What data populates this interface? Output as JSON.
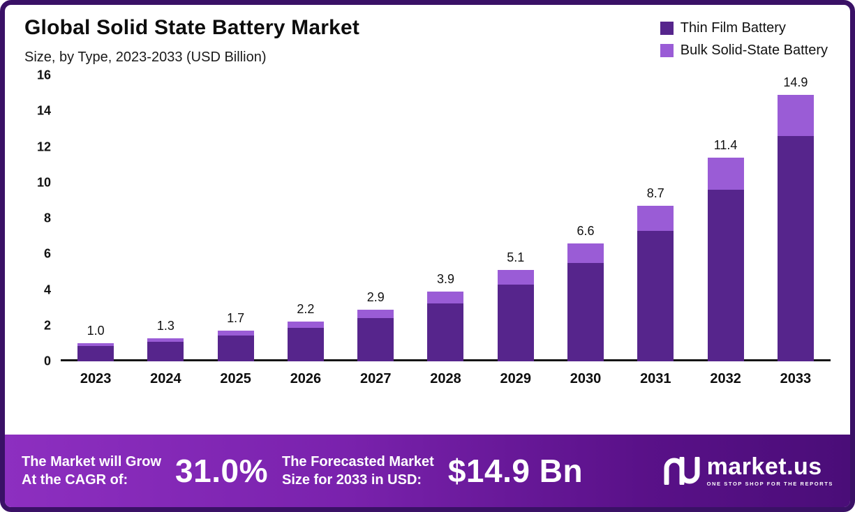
{
  "header": {
    "title": "Global Solid State Battery Market",
    "subtitle": "Size, by Type, 2023-2033 (USD Billion)"
  },
  "legend": [
    {
      "label": "Thin Film Battery",
      "color": "#56258c"
    },
    {
      "label": "Bulk Solid-State Battery",
      "color": "#9a5cd6"
    }
  ],
  "chart_data": {
    "type": "bar",
    "stacked": true,
    "title": "Global Solid State Battery Market",
    "subtitle": "Size, by Type, 2023-2033 (USD Billion)",
    "categories": [
      "2023",
      "2024",
      "2025",
      "2026",
      "2027",
      "2028",
      "2029",
      "2030",
      "2031",
      "2032",
      "2033"
    ],
    "series": [
      {
        "name": "Thin Film Battery",
        "color": "#56258c",
        "values": [
          0.85,
          1.1,
          1.45,
          1.85,
          2.4,
          3.25,
          4.3,
          5.5,
          7.3,
          9.6,
          12.6
        ]
      },
      {
        "name": "Bulk Solid-State Battery",
        "color": "#9a5cd6",
        "values": [
          0.15,
          0.2,
          0.25,
          0.35,
          0.5,
          0.65,
          0.8,
          1.1,
          1.4,
          1.8,
          2.3
        ]
      }
    ],
    "totals": [
      1.0,
      1.3,
      1.7,
      2.2,
      2.9,
      3.9,
      5.1,
      6.6,
      8.7,
      11.4,
      14.9
    ],
    "total_labels": [
      "1.0",
      "1.3",
      "1.7",
      "2.2",
      "2.9",
      "3.9",
      "5.1",
      "6.6",
      "8.7",
      "11.4",
      "14.9"
    ],
    "ylim": [
      0,
      16
    ],
    "yticks": [
      0,
      2,
      4,
      6,
      8,
      10,
      12,
      14,
      16
    ],
    "grid": false,
    "legend_position": "top-right"
  },
  "banner": {
    "cagr_line1": "The Market will Grow",
    "cagr_line2": "At the CAGR of:",
    "cagr_value": "31.0%",
    "forecast_line1": "The Forecasted Market",
    "forecast_line2": "Size for 2033 in USD:",
    "forecast_value": "$14.9 Bn",
    "brand": "market.us",
    "brand_tagline": "One Stop Shop For The Reports"
  },
  "colors": {
    "frame_border": "#3a1166",
    "banner_gradient_start": "#8d2fc0",
    "banner_gradient_end": "#4a0d78",
    "axis": "#151515",
    "background": "#ffffff"
  }
}
